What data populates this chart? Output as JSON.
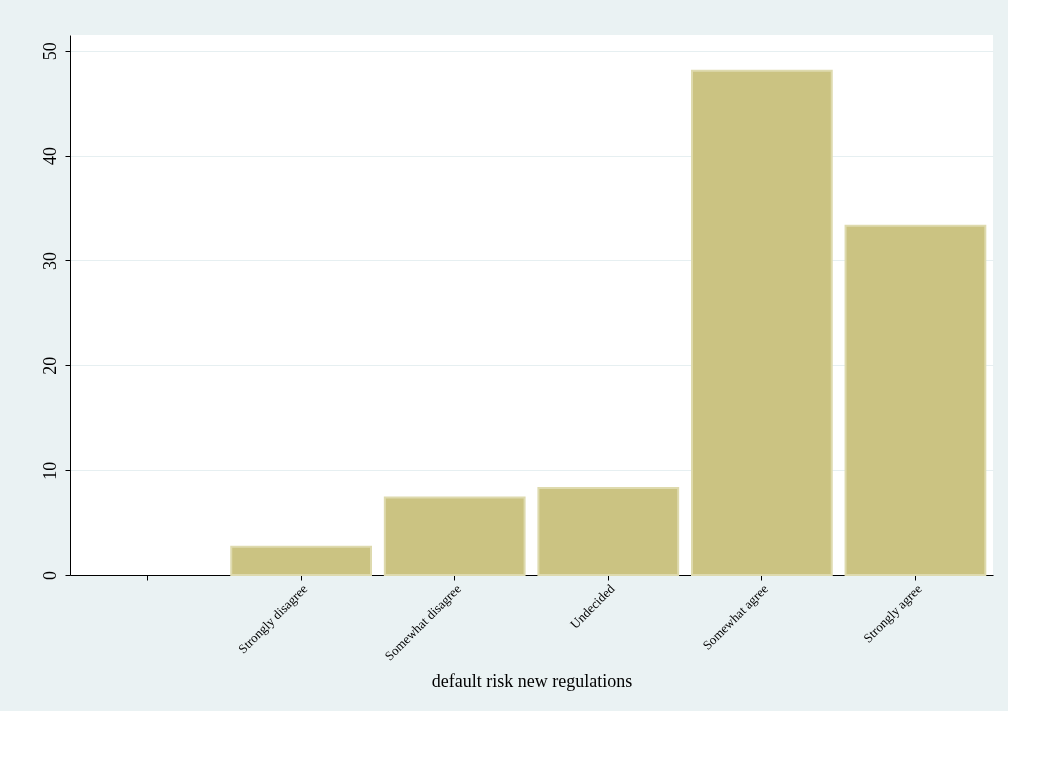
{
  "chart_data": {
    "type": "bar",
    "xlabel": "default risk new regulations",
    "categories": [
      null,
      "Strongly disagree",
      "Somewhat disagree",
      "Undecided",
      "Somewhat agree",
      "Strongly agree"
    ],
    "values": [
      null,
      2.7,
      7.4,
      8.3,
      48.1,
      33.3
    ],
    "color": "#cbc382",
    "ylim": [
      0,
      51.5
    ],
    "yticks": [
      0,
      10,
      20,
      30,
      40,
      50
    ],
    "grid": "y"
  }
}
